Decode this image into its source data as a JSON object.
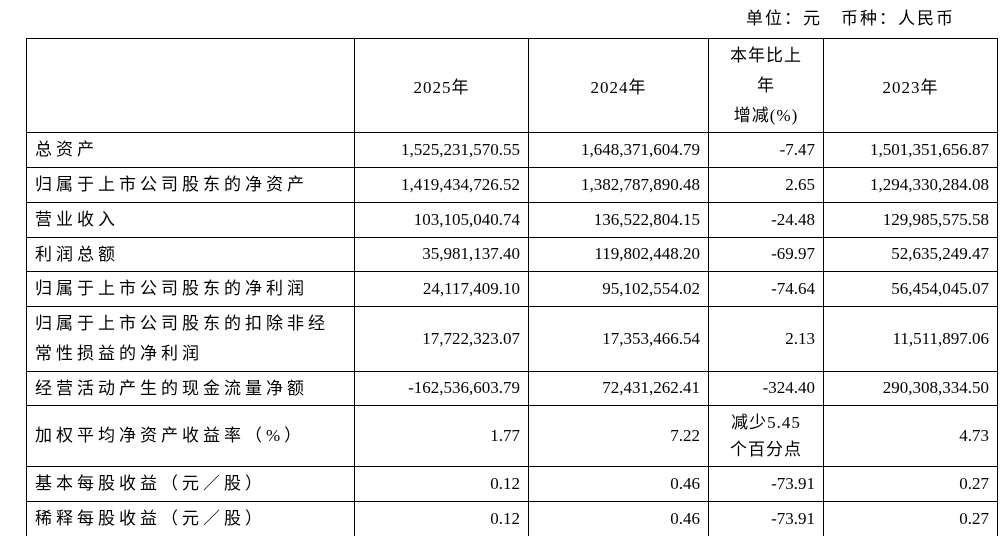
{
  "page": {
    "unit_note": "单位：元　币种：人民币"
  },
  "table": {
    "columns": [
      "",
      "2025年",
      "2024年",
      "本年比上\n年\n增减(%)",
      "2023年"
    ],
    "rows": [
      {
        "label": "总资产",
        "y2025": "1,525,231,570.55",
        "y2024": "1,648,371,604.79",
        "change": "-7.47",
        "y2023": "1,501,351,656.87"
      },
      {
        "label": "归属于上市公司股东的净资产",
        "y2025": "1,419,434,726.52",
        "y2024": "1,382,787,890.48",
        "change": "2.65",
        "y2023": "1,294,330,284.08"
      },
      {
        "label": "营业收入",
        "y2025": "103,105,040.74",
        "y2024": "136,522,804.15",
        "change": "-24.48",
        "y2023": "129,985,575.58"
      },
      {
        "label": "利润总额",
        "y2025": "35,981,137.40",
        "y2024": "119,802,448.20",
        "change": "-69.97",
        "y2023": "52,635,249.47"
      },
      {
        "label": "归属于上市公司股东的净利润",
        "y2025": "24,117,409.10",
        "y2024": "95,102,554.02",
        "change": "-74.64",
        "y2023": "56,454,045.07"
      },
      {
        "label": "归属于上市公司股东的扣除非经常性损益的净利润",
        "y2025": "17,722,323.07",
        "y2024": "17,353,466.54",
        "change": "2.13",
        "y2023": "11,511,897.06"
      },
      {
        "label": "经营活动产生的现金流量净额",
        "y2025": "-162,536,603.79",
        "y2024": "72,431,262.41",
        "change": "-324.40",
        "y2023": "290,308,334.50"
      },
      {
        "label": "加权平均净资产收益率（%）",
        "y2025": "1.77",
        "y2024": "7.22",
        "change": "减少5.45\n个百分点",
        "y2023": "4.73"
      },
      {
        "label": "基本每股收益（元／股）",
        "y2025": "0.12",
        "y2024": "0.46",
        "change": "-73.91",
        "y2023": "0.27"
      },
      {
        "label": "稀释每股收益（元／股）",
        "y2025": "0.12",
        "y2024": "0.46",
        "change": "-73.91",
        "y2023": "0.27"
      }
    ]
  }
}
